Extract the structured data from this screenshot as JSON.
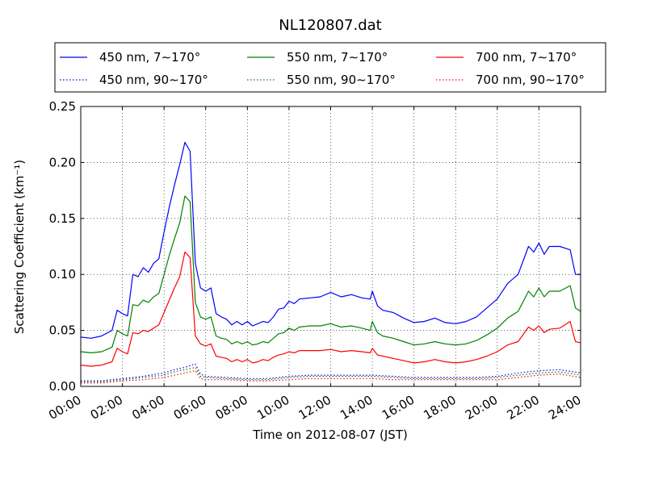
{
  "chart_data": {
    "type": "line",
    "title": "NL120807.dat",
    "xlabel": "Time on 2012-08-07 (JST)",
    "ylabel": "Scattering Coefficient (km⁻¹)",
    "xlim": [
      0,
      24
    ],
    "ylim": [
      0,
      0.25
    ],
    "x_tick_labels": [
      "00:00",
      "02:00",
      "04:00",
      "06:00",
      "08:00",
      "10:00",
      "12:00",
      "14:00",
      "16:00",
      "18:00",
      "20:00",
      "22:00",
      "24:00"
    ],
    "y_tick_labels": [
      "0.00",
      "0.05",
      "0.10",
      "0.15",
      "0.20",
      "0.25"
    ],
    "grid": true,
    "legend_position": "top",
    "colors": {
      "blue": "#0000ff",
      "green": "#008000",
      "red": "#ff0000"
    },
    "series": [
      {
        "name": "450 nm, 7∼170°",
        "color": "#0000ff",
        "style": "solid",
        "x": [
          0,
          0.5,
          1,
          1.5,
          1.75,
          2,
          2.25,
          2.5,
          2.75,
          3,
          3.25,
          3.5,
          3.75,
          4,
          4.25,
          4.5,
          4.75,
          5,
          5.25,
          5.5,
          5.75,
          6,
          6.25,
          6.5,
          6.75,
          7,
          7.25,
          7.5,
          7.75,
          8,
          8.25,
          8.5,
          8.75,
          9,
          9.25,
          9.5,
          9.75,
          10,
          10.25,
          10.5,
          11,
          11.5,
          12,
          12.5,
          13,
          13.5,
          13.9,
          14,
          14.25,
          14.5,
          15,
          15.5,
          16,
          16.5,
          17,
          17.5,
          18,
          18.5,
          19,
          19.5,
          20,
          20.5,
          21,
          21.5,
          21.75,
          22,
          22.25,
          22.5,
          23,
          23.5,
          23.75,
          24
        ],
        "y": [
          0.044,
          0.043,
          0.045,
          0.05,
          0.068,
          0.065,
          0.063,
          0.1,
          0.098,
          0.106,
          0.102,
          0.11,
          0.114,
          0.138,
          0.16,
          0.18,
          0.198,
          0.218,
          0.21,
          0.11,
          0.088,
          0.085,
          0.088,
          0.065,
          0.062,
          0.06,
          0.055,
          0.058,
          0.055,
          0.058,
          0.054,
          0.056,
          0.058,
          0.057,
          0.062,
          0.069,
          0.07,
          0.076,
          0.074,
          0.078,
          0.079,
          0.08,
          0.084,
          0.08,
          0.082,
          0.079,
          0.078,
          0.085,
          0.072,
          0.068,
          0.066,
          0.061,
          0.057,
          0.058,
          0.061,
          0.057,
          0.056,
          0.058,
          0.062,
          0.07,
          0.078,
          0.092,
          0.1,
          0.125,
          0.12,
          0.128,
          0.118,
          0.125,
          0.125,
          0.122,
          0.1,
          0.1
        ]
      },
      {
        "name": "450 nm, 90∼170°",
        "color": "#0000ff",
        "style": "dotted",
        "x": [
          0,
          1,
          2,
          3,
          4,
          4.5,
          5,
          5.5,
          5.75,
          6,
          7,
          8,
          9,
          10,
          11,
          12,
          13,
          14,
          15,
          16,
          17,
          18,
          19,
          20,
          21,
          22,
          23,
          24
        ],
        "y": [
          0.005,
          0.005,
          0.007,
          0.009,
          0.012,
          0.015,
          0.017,
          0.02,
          0.011,
          0.009,
          0.008,
          0.007,
          0.007,
          0.009,
          0.01,
          0.01,
          0.01,
          0.01,
          0.009,
          0.008,
          0.008,
          0.008,
          0.008,
          0.009,
          0.012,
          0.014,
          0.015,
          0.012
        ]
      },
      {
        "name": "550 nm, 7∼170°",
        "color": "#008000",
        "style": "solid",
        "x": [
          0,
          0.5,
          1,
          1.5,
          1.75,
          2,
          2.25,
          2.5,
          2.75,
          3,
          3.25,
          3.5,
          3.75,
          4,
          4.25,
          4.5,
          4.75,
          5,
          5.25,
          5.5,
          5.75,
          6,
          6.25,
          6.5,
          6.75,
          7,
          7.25,
          7.5,
          7.75,
          8,
          8.25,
          8.5,
          8.75,
          9,
          9.25,
          9.5,
          9.75,
          10,
          10.25,
          10.5,
          11,
          11.5,
          12,
          12.5,
          13,
          13.5,
          13.9,
          14,
          14.25,
          14.5,
          15,
          15.5,
          16,
          16.5,
          17,
          17.5,
          18,
          18.5,
          19,
          19.5,
          20,
          20.5,
          21,
          21.5,
          21.75,
          22,
          22.25,
          22.5,
          23,
          23.5,
          23.75,
          24
        ],
        "y": [
          0.031,
          0.03,
          0.031,
          0.035,
          0.05,
          0.047,
          0.045,
          0.073,
          0.072,
          0.077,
          0.075,
          0.08,
          0.083,
          0.1,
          0.117,
          0.132,
          0.146,
          0.17,
          0.165,
          0.075,
          0.062,
          0.06,
          0.062,
          0.045,
          0.043,
          0.042,
          0.038,
          0.04,
          0.038,
          0.04,
          0.037,
          0.038,
          0.04,
          0.039,
          0.043,
          0.047,
          0.048,
          0.052,
          0.05,
          0.053,
          0.054,
          0.054,
          0.056,
          0.053,
          0.054,
          0.052,
          0.05,
          0.058,
          0.048,
          0.045,
          0.043,
          0.04,
          0.037,
          0.038,
          0.04,
          0.038,
          0.037,
          0.038,
          0.041,
          0.046,
          0.052,
          0.061,
          0.067,
          0.085,
          0.08,
          0.088,
          0.08,
          0.085,
          0.085,
          0.09,
          0.07,
          0.067
        ]
      },
      {
        "name": "550 nm, 90∼170°",
        "color": "#008000",
        "style": "dotted",
        "x": [
          0,
          1,
          2,
          3,
          4,
          4.5,
          5,
          5.5,
          5.75,
          6,
          7,
          8,
          9,
          10,
          11,
          12,
          13,
          14,
          15,
          16,
          17,
          18,
          19,
          20,
          21,
          22,
          23,
          24
        ],
        "y": [
          0.004,
          0.004,
          0.006,
          0.008,
          0.01,
          0.013,
          0.015,
          0.017,
          0.009,
          0.008,
          0.007,
          0.006,
          0.006,
          0.008,
          0.009,
          0.009,
          0.009,
          0.009,
          0.008,
          0.007,
          0.007,
          0.007,
          0.007,
          0.008,
          0.01,
          0.012,
          0.013,
          0.01
        ]
      },
      {
        "name": "700 nm, 7∼170°",
        "color": "#ff0000",
        "style": "solid",
        "x": [
          0,
          0.5,
          1,
          1.5,
          1.75,
          2,
          2.25,
          2.5,
          2.75,
          3,
          3.25,
          3.5,
          3.75,
          4,
          4.25,
          4.5,
          4.75,
          5,
          5.25,
          5.5,
          5.75,
          6,
          6.25,
          6.5,
          6.75,
          7,
          7.25,
          7.5,
          7.75,
          8,
          8.25,
          8.5,
          8.75,
          9,
          9.25,
          9.5,
          9.75,
          10,
          10.25,
          10.5,
          11,
          11.5,
          12,
          12.5,
          13,
          13.5,
          13.9,
          14,
          14.25,
          14.5,
          15,
          15.5,
          16,
          16.5,
          17,
          17.5,
          18,
          18.5,
          19,
          19.5,
          20,
          20.5,
          21,
          21.5,
          21.75,
          22,
          22.25,
          22.5,
          23,
          23.5,
          23.75,
          24
        ],
        "y": [
          0.019,
          0.018,
          0.019,
          0.022,
          0.034,
          0.031,
          0.029,
          0.048,
          0.047,
          0.05,
          0.049,
          0.052,
          0.055,
          0.066,
          0.077,
          0.088,
          0.098,
          0.12,
          0.115,
          0.045,
          0.038,
          0.036,
          0.038,
          0.027,
          0.026,
          0.025,
          0.022,
          0.024,
          0.022,
          0.024,
          0.021,
          0.022,
          0.024,
          0.023,
          0.026,
          0.028,
          0.029,
          0.031,
          0.03,
          0.032,
          0.032,
          0.032,
          0.033,
          0.031,
          0.032,
          0.031,
          0.03,
          0.034,
          0.028,
          0.027,
          0.025,
          0.023,
          0.021,
          0.022,
          0.024,
          0.022,
          0.021,
          0.022,
          0.024,
          0.027,
          0.031,
          0.037,
          0.04,
          0.053,
          0.05,
          0.054,
          0.048,
          0.051,
          0.052,
          0.058,
          0.04,
          0.039
        ]
      },
      {
        "name": "700 nm, 90∼170°",
        "color": "#ff0000",
        "style": "dotted",
        "x": [
          0,
          1,
          2,
          3,
          4,
          4.5,
          5,
          5.5,
          5.75,
          6,
          7,
          8,
          9,
          10,
          11,
          12,
          13,
          14,
          15,
          16,
          17,
          18,
          19,
          20,
          21,
          22,
          23,
          24
        ],
        "y": [
          0.003,
          0.003,
          0.005,
          0.006,
          0.008,
          0.01,
          0.012,
          0.014,
          0.007,
          0.006,
          0.006,
          0.005,
          0.005,
          0.006,
          0.007,
          0.007,
          0.007,
          0.007,
          0.006,
          0.006,
          0.006,
          0.006,
          0.006,
          0.006,
          0.008,
          0.01,
          0.011,
          0.008
        ]
      }
    ]
  }
}
